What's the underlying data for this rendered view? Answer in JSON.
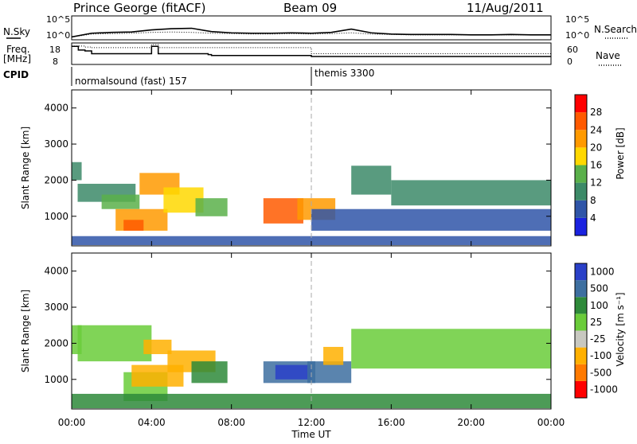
{
  "header": {
    "title": "Prince George (fitACF)",
    "beam": "Beam 09",
    "date": "11/Aug/2011"
  },
  "strip_labels": {
    "nsky": "N.Sky",
    "nsearch": "N.Search",
    "freq": "Freq.",
    "freq_unit": "[MHz]",
    "nave": "Nave",
    "cpid": "CPID",
    "nsky_ticks": [
      "10^5",
      "10^0"
    ],
    "nsearch_ticks": [
      "10^5",
      "10^0"
    ],
    "freq_ticks": [
      "18",
      "8"
    ],
    "nave_ticks": [
      "60",
      "0"
    ]
  },
  "cpid_modes": [
    {
      "label": "normalsound (fast) 157"
    },
    {
      "label": "themis 3300"
    }
  ],
  "axes": {
    "ylabel": "Slant Range [km]",
    "xlabel": "Time UT",
    "y_ticks": [
      "1000",
      "2000",
      "3000",
      "4000"
    ],
    "x_ticks": [
      "00:00",
      "04:00",
      "08:00",
      "12:00",
      "16:00",
      "20:00",
      "00:00"
    ]
  },
  "colorbars": {
    "power": {
      "label": "Power [dB]",
      "ticks": [
        "4",
        "8",
        "12",
        "16",
        "20",
        "24",
        "28"
      ],
      "colors": [
        "#1a22e0",
        "#2f55a8",
        "#3c8a68",
        "#5ab04a",
        "#ffd800",
        "#ff9a00",
        "#ff5a00",
        "#ff0000"
      ]
    },
    "velocity": {
      "label": "Velocity [m s⁻¹]",
      "ticks": [
        "1000",
        "500",
        "100",
        "25",
        "-25",
        "-100",
        "-500",
        "-1000"
      ],
      "colors": [
        "#2a40c8",
        "#3d6fa0",
        "#2e8a3a",
        "#6acc3a",
        "#c8c8c0",
        "#ffb000",
        "#ff7a00",
        "#ff0000"
      ]
    }
  },
  "chart_data": [
    {
      "type": "line",
      "title": "N.Sky / N.Search",
      "y_range_log10": [
        0,
        5
      ],
      "x": [
        "00:00",
        "01:00",
        "02:00",
        "03:00",
        "04:00",
        "05:00",
        "06:00",
        "07:00",
        "08:00",
        "09:00",
        "10:00",
        "11:00",
        "12:00",
        "13:00",
        "14:00",
        "15:00",
        "16:00",
        "17:00",
        "18:00",
        "19:00",
        "20:00",
        "21:00",
        "22:00",
        "23:00",
        "24:00"
      ],
      "series": [
        {
          "name": "N.Sky",
          "values_log10": [
            0.3,
            1.2,
            1.4,
            1.5,
            2.0,
            2.3,
            2.4,
            1.6,
            1.3,
            1.2,
            1.2,
            1.3,
            1.2,
            1.4,
            2.2,
            1.3,
            1.0,
            0.9,
            0.9,
            0.9,
            0.8,
            0.8,
            0.9,
            0.8,
            0.8
          ]
        },
        {
          "name": "N.Search",
          "values_log10": [
            0.3,
            1.0,
            1.1,
            1.2,
            1.4,
            1.5,
            1.4,
            1.2,
            1.1,
            1.0,
            1.0,
            1.1,
            1.0,
            1.1,
            1.3,
            1.0,
            0.9,
            0.8,
            0.8,
            0.8,
            0.8,
            0.8,
            0.8,
            0.8,
            0.8
          ]
        }
      ]
    },
    {
      "type": "line",
      "title": "Freq. / Nave",
      "x": [
        "00:00",
        "00:20",
        "00:40",
        "01:00",
        "03:50",
        "04:00",
        "04:20",
        "06:50",
        "07:00",
        "08:00",
        "12:00",
        "16:00",
        "20:00",
        "24:00"
      ],
      "series": [
        {
          "name": "Freq.",
          "values": [
            17,
            15,
            14.5,
            13,
            13,
            17,
            13,
            12.5,
            12,
            12,
            11.5,
            11.5,
            11.5,
            11.5
          ]
        },
        {
          "name": "Nave",
          "values": [
            55,
            55,
            52,
            50,
            50,
            60,
            50,
            50,
            50,
            50,
            30,
            30,
            30,
            30
          ]
        }
      ]
    },
    {
      "type": "heatmap",
      "title": "Power [dB]",
      "xlabel": "Time UT",
      "ylabel": "Slant Range [km]",
      "xlim_hours": [
        0,
        24
      ],
      "ylim_km": [
        180,
        4500
      ],
      "colorbar_range": [
        0,
        30
      ],
      "patches": [
        {
          "t0": 0.0,
          "t1": 0.5,
          "r0": 2000,
          "r1": 2500,
          "value": 8
        },
        {
          "t0": 0.3,
          "t1": 3.2,
          "r0": 1400,
          "r1": 1900,
          "value": 10
        },
        {
          "t0": 1.5,
          "t1": 3.4,
          "r0": 1200,
          "r1": 1600,
          "value": 14
        },
        {
          "t0": 2.2,
          "t1": 4.8,
          "r0": 600,
          "r1": 1200,
          "value": 20
        },
        {
          "t0": 2.6,
          "t1": 3.6,
          "r0": 600,
          "r1": 900,
          "value": 26
        },
        {
          "t0": 3.4,
          "t1": 5.4,
          "r0": 1600,
          "r1": 2200,
          "value": 22
        },
        {
          "t0": 4.6,
          "t1": 6.6,
          "r0": 1100,
          "r1": 1800,
          "value": 18
        },
        {
          "t0": 6.2,
          "t1": 7.8,
          "r0": 1000,
          "r1": 1500,
          "value": 14
        },
        {
          "t0": 9.6,
          "t1": 11.6,
          "r0": 800,
          "r1": 1500,
          "value": 26
        },
        {
          "t0": 11.3,
          "t1": 13.2,
          "r0": 900,
          "r1": 1500,
          "value": 22
        },
        {
          "t0": 14.0,
          "t1": 16.0,
          "r0": 1600,
          "r1": 2400,
          "value": 10
        },
        {
          "t0": 16.0,
          "t1": 24.0,
          "r0": 1300,
          "r1": 2000,
          "value": 8
        },
        {
          "t0": 12.0,
          "t1": 24.0,
          "r0": 600,
          "r1": 1200,
          "value": 6
        },
        {
          "t0": 0.0,
          "t1": 24.0,
          "r0": 200,
          "r1": 450,
          "value": 5
        }
      ]
    },
    {
      "type": "heatmap",
      "title": "Velocity [m s⁻¹]",
      "xlabel": "Time UT",
      "ylabel": "Slant Range [km]",
      "xlim_hours": [
        0,
        24
      ],
      "ylim_km": [
        180,
        4500
      ],
      "colorbar_range": [
        -1000,
        1000
      ],
      "patches": [
        {
          "t0": 0.0,
          "t1": 0.5,
          "r0": 1700,
          "r1": 2500,
          "value": 0
        },
        {
          "t0": 0.3,
          "t1": 4.0,
          "r0": 1500,
          "r1": 2500,
          "value": 0
        },
        {
          "t0": 2.6,
          "t1": 4.8,
          "r0": 400,
          "r1": 1200,
          "value": 0
        },
        {
          "t0": 3.0,
          "t1": 5.6,
          "r0": 800,
          "r1": 1400,
          "value": -150
        },
        {
          "t0": 3.6,
          "t1": 5.0,
          "r0": 1700,
          "r1": 2100,
          "value": -120
        },
        {
          "t0": 4.8,
          "t1": 7.2,
          "r0": 1200,
          "r1": 1800,
          "value": -200
        },
        {
          "t0": 6.0,
          "t1": 7.8,
          "r0": 900,
          "r1": 1500,
          "value": 60
        },
        {
          "t0": 9.6,
          "t1": 12.2,
          "r0": 900,
          "r1": 1500,
          "value": 120
        },
        {
          "t0": 10.2,
          "t1": 12.0,
          "r0": 1000,
          "r1": 1400,
          "value": 600
        },
        {
          "t0": 11.8,
          "t1": 14.0,
          "r0": 900,
          "r1": 1500,
          "value": 150
        },
        {
          "t0": 12.6,
          "t1": 13.6,
          "r0": 1400,
          "r1": 1900,
          "value": -150
        },
        {
          "t0": 14.0,
          "t1": 24.0,
          "r0": 1300,
          "r1": 2400,
          "value": 0
        },
        {
          "t0": 0.0,
          "t1": 24.0,
          "r0": 200,
          "r1": 600,
          "value": 50
        }
      ]
    }
  ]
}
